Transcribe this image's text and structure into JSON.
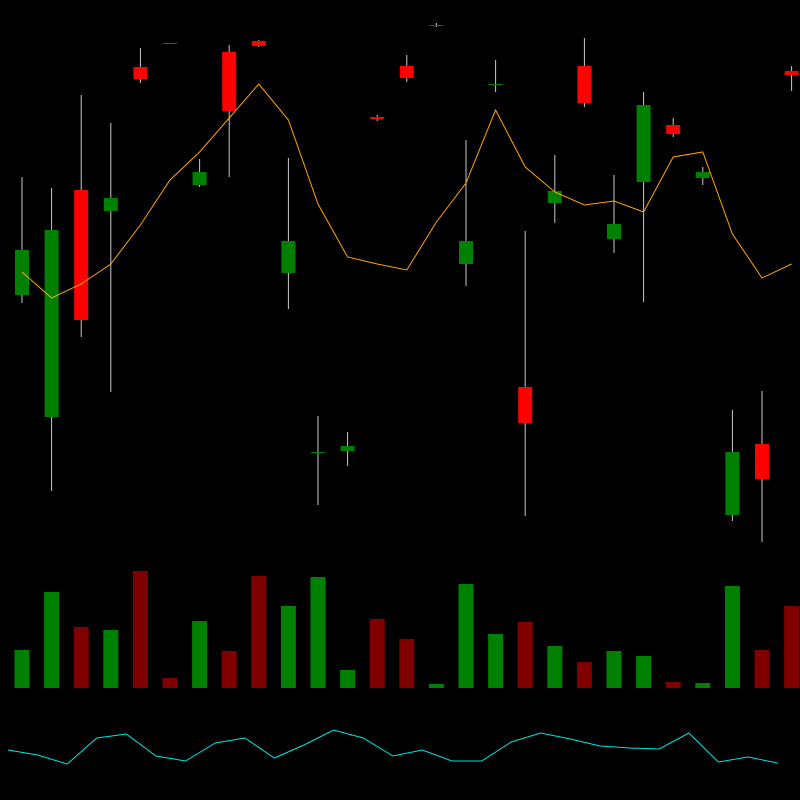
{
  "chart_data": [
    {
      "type": "candlestick",
      "up_color": "#008000",
      "down_color": "#ff0000",
      "wick_color": "#c8c8c8",
      "open": [
        265,
        143,
        370,
        349,
        493,
        517,
        375,
        508,
        519,
        287,
        107.5,
        109,
        443,
        494,
        534.5,
        296,
        475.5,
        173,
        357,
        494,
        321,
        378,
        435,
        382,
        45,
        116,
        489
      ],
      "high": [
        383,
        372,
        465,
        437,
        512,
        517,
        401,
        515,
        520,
        402,
        144,
        128,
        445,
        505,
        537,
        420,
        500,
        329,
        405,
        522,
        385,
        468,
        442,
        393,
        150,
        169,
        494
      ],
      "low": [
        257,
        69,
        223,
        168,
        477,
        516,
        373,
        383,
        513,
        251,
        55,
        94,
        439,
        478,
        533,
        274,
        468,
        44,
        337,
        453,
        307,
        258,
        423,
        375,
        39,
        18,
        469
      ],
      "close": [
        310,
        330,
        240,
        362,
        481,
        516.5,
        388,
        449,
        514,
        319,
        108,
        114,
        441,
        482,
        535,
        319,
        476,
        137,
        369,
        457,
        336,
        455,
        426,
        388,
        108,
        81,
        485
      ],
      "ma": {
        "color": "#ffa500",
        "values": [
          288,
          262,
          276,
          296,
          335,
          380,
          408,
          442,
          476,
          440,
          356,
          303,
          296,
          290,
          338,
          377,
          450,
          393,
          368,
          355,
          359,
          348,
          403,
          408,
          326,
          282,
          296
        ]
      },
      "ylim": [
        0,
        540
      ]
    },
    {
      "type": "bar",
      "values": [
        38,
        96,
        61,
        58,
        117,
        10,
        67,
        37,
        112,
        82,
        111,
        18,
        69,
        49,
        4,
        104,
        54,
        66,
        42,
        26,
        37,
        32,
        6,
        5,
        102,
        38,
        82
      ],
      "colors": [
        "#008000",
        "#008000",
        "#800000",
        "#008000",
        "#800000",
        "#800000",
        "#008000",
        "#800000",
        "#800000",
        "#008000",
        "#008000",
        "#008000",
        "#800000",
        "#800000",
        "#008000",
        "#008000",
        "#008000",
        "#800000",
        "#008000",
        "#800000",
        "#008000",
        "#008000",
        "#800000",
        "#008000",
        "#008000",
        "#800000",
        "#800000"
      ],
      "ylim": [
        0,
        123
      ]
    },
    {
      "type": "line",
      "color": "#00e5e5",
      "values": [
        30,
        25,
        16,
        42,
        46,
        24,
        19,
        37,
        42,
        22,
        35,
        50,
        42,
        24,
        30,
        19,
        19,
        38,
        47,
        41,
        34,
        32,
        31,
        47,
        18,
        23,
        17
      ],
      "ylim": [
        0,
        60
      ]
    }
  ]
}
